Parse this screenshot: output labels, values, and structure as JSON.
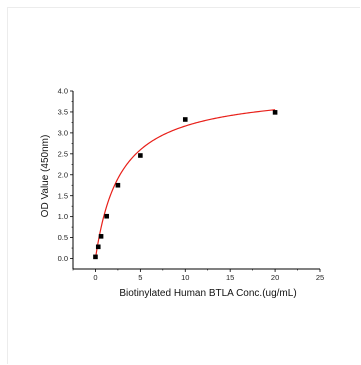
{
  "chart_data": {
    "type": "scatter",
    "xlabel": "Biotinylated Human BTLA Conc.(ug/mL)",
    "ylabel": "OD Value (450nm)",
    "xlim": [
      -2.5,
      25
    ],
    "ylim": [
      -0.25,
      4.0
    ],
    "x_ticks": [
      0,
      5,
      10,
      15,
      20,
      25
    ],
    "y_ticks": [
      "0.0",
      "0.5",
      "1.0",
      "1.5",
      "2.0",
      "2.5",
      "3.0",
      "3.5",
      "4.0"
    ],
    "grid": false,
    "series": [
      {
        "marker": "square",
        "color": "#000000",
        "points": [
          [
            0.0,
            0.04
          ],
          [
            0.3125,
            0.28
          ],
          [
            0.625,
            0.53
          ],
          [
            1.25,
            1.01
          ],
          [
            2.5,
            1.75
          ],
          [
            5.0,
            2.46
          ],
          [
            10.0,
            3.32
          ],
          [
            20.0,
            3.49
          ]
        ]
      },
      {
        "style": "fit-curve",
        "color": "#e8201a",
        "model": "hyperbolic",
        "vmax": 4.05,
        "kd": 2.8,
        "x_range": [
          0,
          20
        ]
      }
    ]
  }
}
